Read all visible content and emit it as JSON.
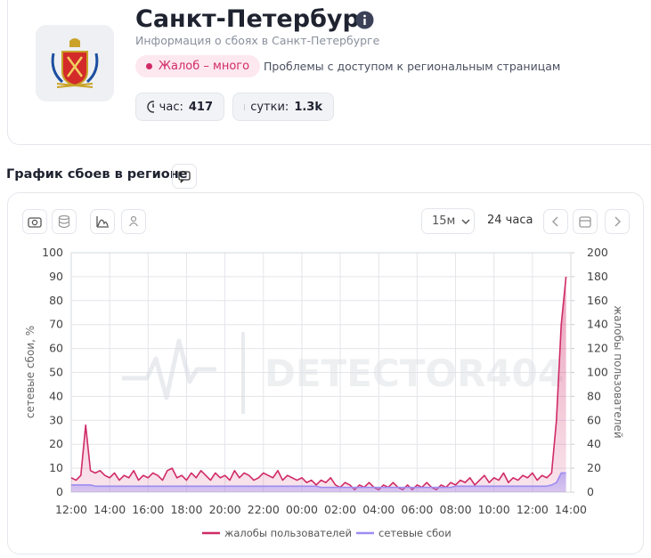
{
  "header": {
    "title": "Санкт-Петербург",
    "subtitle": "Информация о сбоях в Санкт-Петербурге",
    "badge": "Жалоб – много",
    "description": "Проблемы с доступом к региональным страницам",
    "stats": [
      {
        "label": "час:",
        "value": "417"
      },
      {
        "label": "сутки:",
        "value": "1.3k"
      }
    ]
  },
  "section_title": "График сбоев в регионе",
  "toolbar": {
    "interval": "15м",
    "period": "24 часа"
  },
  "watermark": "DETECTOR404",
  "chart_data": {
    "type": "line",
    "categories": [
      "12:00",
      "12:15",
      "12:30",
      "12:45",
      "13:00",
      "13:15",
      "13:30",
      "13:45",
      "14:00",
      "14:15",
      "14:30",
      "14:45",
      "15:00",
      "15:15",
      "15:30",
      "15:45",
      "16:00",
      "16:15",
      "16:30",
      "16:45",
      "17:00",
      "17:15",
      "17:30",
      "17:45",
      "18:00",
      "18:15",
      "18:30",
      "18:45",
      "19:00",
      "19:15",
      "19:30",
      "19:45",
      "20:00",
      "20:15",
      "20:30",
      "20:45",
      "21:00",
      "21:15",
      "21:30",
      "21:45",
      "22:00",
      "22:15",
      "22:30",
      "22:45",
      "23:00",
      "23:15",
      "23:30",
      "23:45",
      "00:00",
      "00:15",
      "00:30",
      "00:45",
      "01:00",
      "01:15",
      "01:30",
      "01:45",
      "02:00",
      "02:15",
      "02:30",
      "02:45",
      "03:00",
      "03:15",
      "03:30",
      "03:45",
      "04:00",
      "04:15",
      "04:30",
      "04:45",
      "05:00",
      "05:15",
      "05:30",
      "05:45",
      "06:00",
      "06:15",
      "06:30",
      "06:45",
      "07:00",
      "07:15",
      "07:30",
      "07:45",
      "08:00",
      "08:15",
      "08:30",
      "08:45",
      "09:00",
      "09:15",
      "09:30",
      "09:45",
      "10:00",
      "10:15",
      "10:30",
      "10:45",
      "11:00",
      "11:15",
      "11:30",
      "11:45",
      "12:00",
      "12:15",
      "12:30",
      "12:45",
      "13:00",
      "13:15",
      "13:30",
      "13:45",
      "14:00"
    ],
    "xtick_every": 8,
    "series": [
      {
        "name": "жалобы пользователей",
        "color": "#d02a66",
        "axis": "y2",
        "area": true,
        "values": [
          12,
          10,
          14,
          56,
          18,
          16,
          18,
          14,
          12,
          16,
          10,
          14,
          12,
          18,
          10,
          14,
          12,
          16,
          14,
          10,
          18,
          20,
          12,
          14,
          10,
          16,
          12,
          18,
          14,
          10,
          16,
          12,
          14,
          10,
          18,
          12,
          16,
          14,
          10,
          12,
          16,
          14,
          12,
          18,
          10,
          14,
          12,
          10,
          12,
          8,
          10,
          6,
          10,
          8,
          12,
          6,
          4,
          8,
          6,
          2,
          6,
          4,
          8,
          4,
          2,
          6,
          4,
          8,
          4,
          2,
          6,
          2,
          6,
          4,
          8,
          4,
          2,
          6,
          4,
          8,
          6,
          10,
          8,
          12,
          6,
          10,
          14,
          8,
          12,
          10,
          16,
          8,
          12,
          10,
          14,
          12,
          16,
          10,
          14,
          12,
          16,
          60,
          140,
          180,
          null
        ]
      },
      {
        "name": "сетевые сбои",
        "color": "#9d8cf2",
        "area": true,
        "values": [
          3,
          3,
          3,
          3,
          3,
          2.5,
          2.5,
          2.5,
          2.5,
          2.5,
          2.5,
          2.5,
          2.5,
          2.5,
          2.5,
          2.5,
          2.5,
          2.5,
          2.5,
          2.5,
          2.5,
          2.5,
          2.5,
          2.5,
          2.5,
          2.5,
          2.5,
          2.5,
          2.5,
          2.5,
          2.5,
          2.5,
          2.5,
          2.5,
          2.5,
          2.5,
          2.5,
          2.5,
          2.5,
          2.5,
          2.5,
          2.5,
          2.5,
          2.5,
          2.5,
          2.5,
          2.5,
          2.5,
          2.5,
          2.5,
          2.5,
          2.5,
          2,
          2,
          2,
          2,
          2,
          2,
          2,
          2,
          2,
          2,
          2,
          2,
          2,
          2,
          2,
          2,
          2,
          2,
          2,
          2,
          2,
          2,
          2,
          2,
          2,
          2,
          2,
          2,
          2.5,
          2.5,
          2.5,
          2.5,
          2.5,
          2.5,
          2.5,
          2.5,
          2.5,
          2.5,
          2.5,
          2.5,
          2.5,
          2.5,
          2.5,
          2.5,
          2.5,
          2.5,
          2.5,
          2.5,
          3,
          4,
          8,
          8,
          null
        ]
      }
    ],
    "ylabel": "сетевые сбои, %",
    "y2label": "жалобы пользователей",
    "ylim": [
      0,
      100
    ],
    "yticks": [
      0,
      10,
      20,
      30,
      40,
      50,
      60,
      70,
      80,
      90,
      100
    ],
    "y2lim": [
      0,
      200
    ],
    "y2ticks": [
      0,
      20,
      40,
      60,
      80,
      100,
      120,
      140,
      160,
      180,
      200
    ],
    "grid": true
  }
}
